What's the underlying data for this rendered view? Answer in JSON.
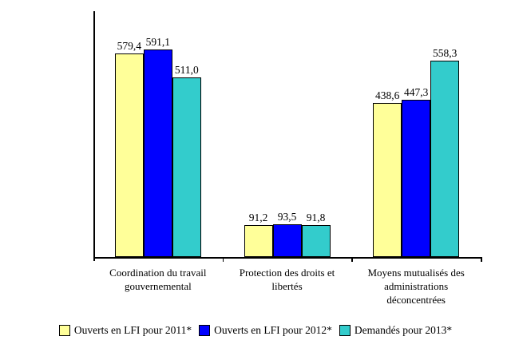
{
  "chart_data": {
    "type": "bar",
    "title": "",
    "xlabel": "",
    "ylabel": "",
    "categories": [
      "Coordination du travail gouvernemental",
      "Protection des droits et libertés",
      "Moyens mutualisés des administrations déconcentrées"
    ],
    "series": [
      {
        "name": "Ouverts en LFI pour 2011*",
        "color": "#FFFF99",
        "values": [
          579.4,
          91.2,
          438.6
        ]
      },
      {
        "name": "Ouverts en LFI pour 2012*",
        "color": "#0000FF",
        "values": [
          591.1,
          93.5,
          447.3
        ]
      },
      {
        "name": "Demandés pour 2013*",
        "color": "#33CCCC",
        "values": [
          511.0,
          91.8,
          558.3
        ]
      }
    ],
    "value_labels": {
      "visible": true,
      "decimals": 1,
      "decimal_separator": ","
    },
    "ylim": [
      0,
      700
    ],
    "y_axis_ticks_visible": false,
    "grid": false,
    "legend_position": "bottom",
    "axis_color": "#000000",
    "bar_border_color": "#000000",
    "background_color": "#FFFFFF"
  }
}
